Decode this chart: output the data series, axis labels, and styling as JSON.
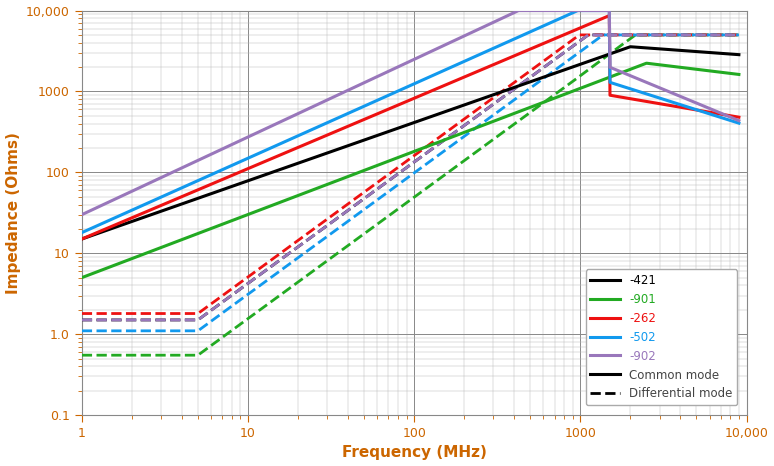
{
  "xlabel": "Frequency (MHz)",
  "ylabel": "Impedance (Ohms)",
  "xlim": [
    1,
    10000
  ],
  "ylim": [
    0.1,
    10000
  ],
  "legend_labels": [
    "-421",
    "-901",
    "-262",
    "-502",
    "-902"
  ],
  "legend_colors": [
    "#000000",
    "#22aa22",
    "#ee1111",
    "#1199ee",
    "#9977bb"
  ],
  "legend_text_colors": [
    "#000000",
    "#22aa22",
    "#ee1111",
    "#1199ee",
    "#9977bb"
  ],
  "common_mode_label": "Common mode",
  "differential_mode_label": "Differential mode",
  "axis_color": "#cc6600",
  "grid_major_color": "#888888",
  "grid_minor_color": "#bbbbbb"
}
